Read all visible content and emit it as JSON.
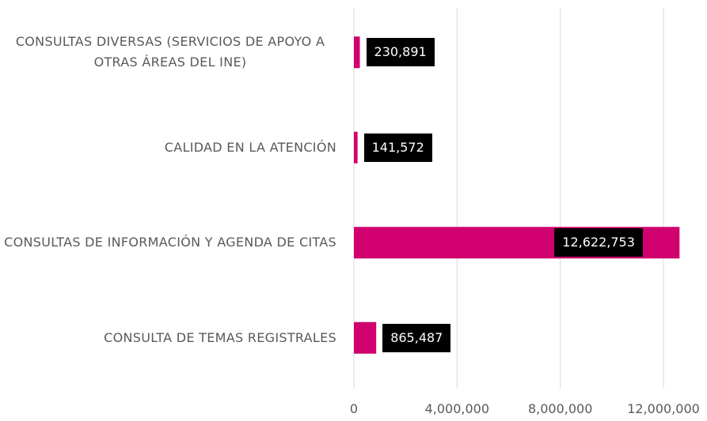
{
  "chart_data": {
    "type": "bar",
    "orientation": "horizontal",
    "categories": [
      "CONSULTAS DIVERSAS (SERVICIOS DE APOYO A OTRAS ÁREAS DEL INE)",
      "CALIDAD EN LA ATENCIÓN",
      "CONSULTAS DE INFORMACIÓN  Y AGENDA DE CITAS",
      "CONSULTA DE TEMAS REGISTRALES"
    ],
    "values": [
      230891,
      141572,
      12622753,
      865487
    ],
    "value_labels": [
      "230,891",
      "141,572",
      "12,622,753",
      "865,487"
    ],
    "color": "#d1006f",
    "xlim": [
      0,
      13000000
    ],
    "xticks": [
      0,
      {
        "value": 4000000,
        "label": "4,000,000"
      },
      {
        "value": 8000000,
        "label": "8,000,000"
      },
      {
        "value": 12000000,
        "label": "12,000,000"
      }
    ],
    "grid": true
  }
}
